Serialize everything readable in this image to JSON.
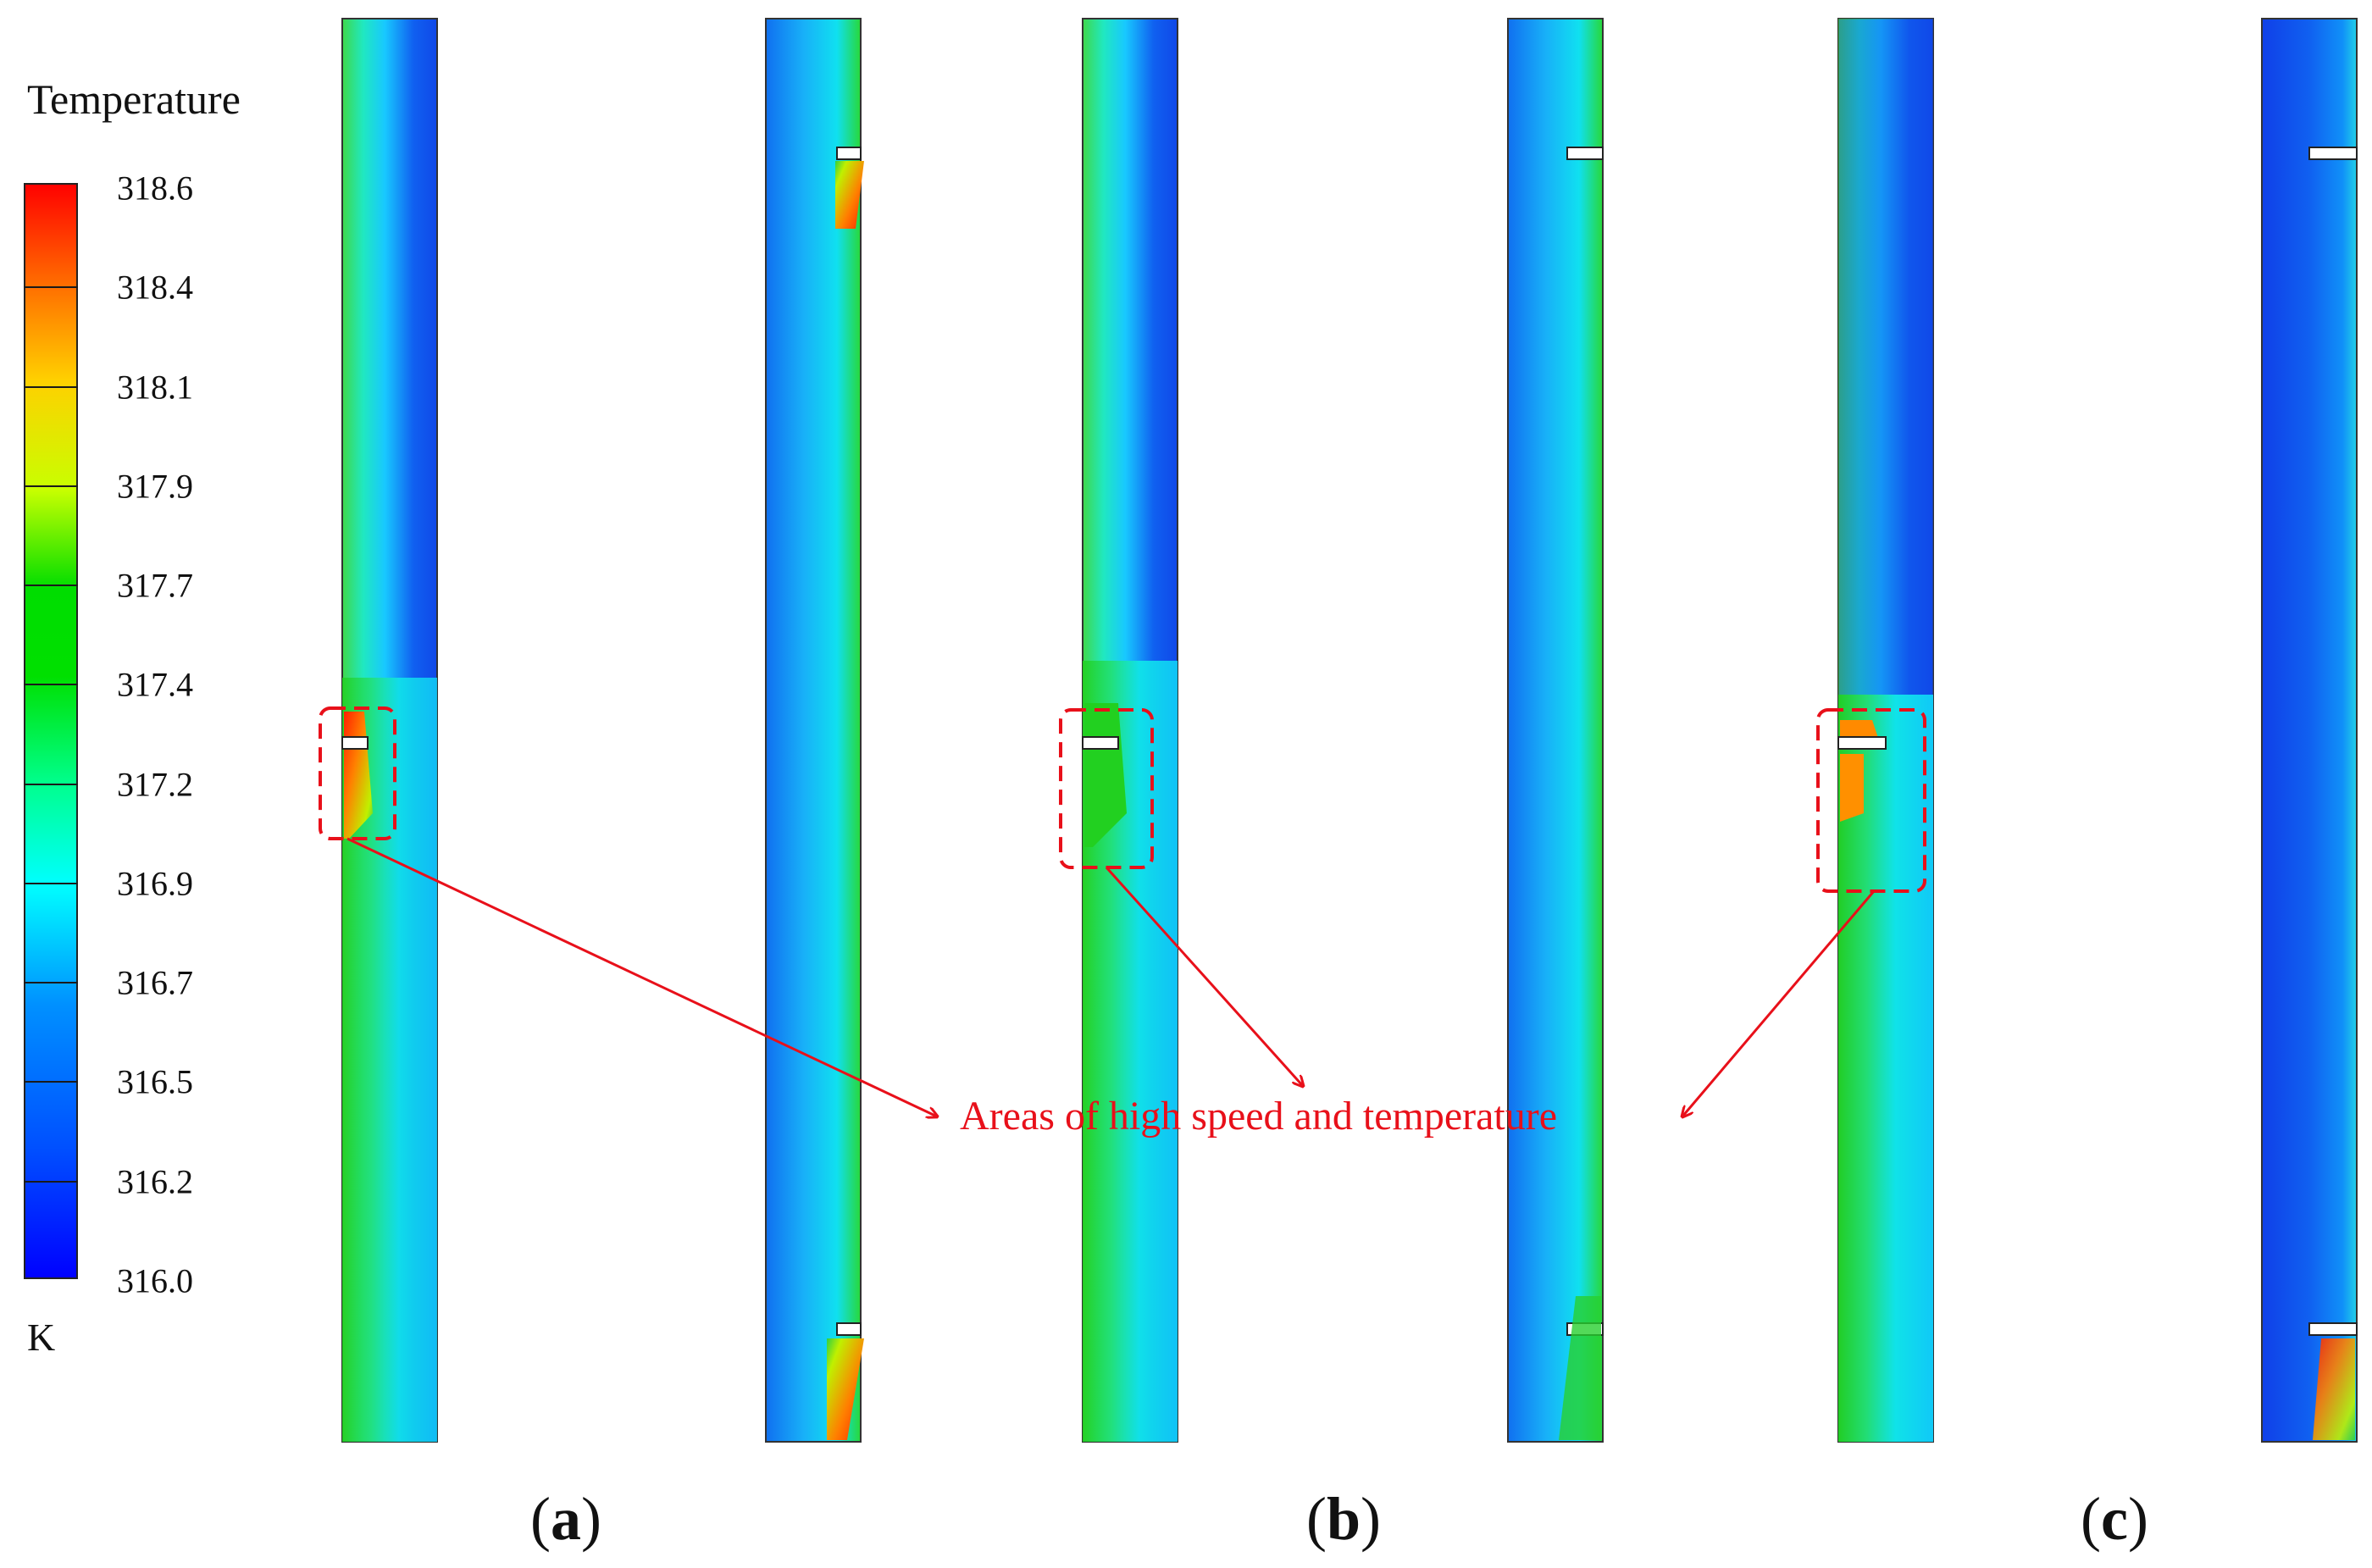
{
  "legend": {
    "title": "Temperature",
    "unit": "K",
    "ticks": [
      "318.6",
      "318.4",
      "318.1",
      "317.9",
      "317.7",
      "317.4",
      "317.2",
      "316.9",
      "316.7",
      "316.5",
      "316.2",
      "316.0"
    ],
    "colors": [
      "#ff0000",
      "#ff6a00",
      "#ffd000",
      "#c8ff00",
      "#00dd00",
      "#00ff90",
      "#00ffff",
      "#0090ff",
      "#0000ff"
    ]
  },
  "panels": [
    {
      "label_open": "(",
      "letter": "a",
      "label_close": ")"
    },
    {
      "label_open": "(",
      "letter": "b",
      "label_close": ")"
    },
    {
      "label_open": "(",
      "letter": "c",
      "label_close": ")"
    }
  ],
  "annotation": {
    "text": "Areas of high speed and temperature",
    "color": "#e8101a"
  }
}
